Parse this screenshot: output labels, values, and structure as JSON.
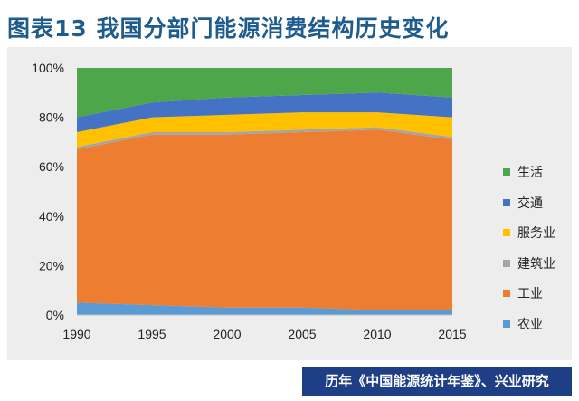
{
  "title": "图表13  我国分部门能源消费结构历史变化",
  "source": "历年《中国能源统计年鉴》、兴业研究",
  "chart_data": {
    "type": "area",
    "stacked": true,
    "percent": true,
    "x": [
      1990,
      1995,
      2000,
      2005,
      2010,
      2015
    ],
    "ylim": [
      0,
      100
    ],
    "yticks": [
      "0%",
      "20%",
      "40%",
      "60%",
      "80%",
      "100%"
    ],
    "legend_position": "right",
    "grid": false,
    "series": [
      {
        "name": "农业",
        "color": "#5b9bd5",
        "values": [
          5,
          4,
          3,
          3,
          2,
          2
        ]
      },
      {
        "name": "工业",
        "color": "#ed7d31",
        "values": [
          62,
          69,
          70,
          71,
          73,
          69
        ]
      },
      {
        "name": "建筑业",
        "color": "#a5a5a5",
        "values": [
          1,
          1,
          1,
          1,
          1,
          1
        ]
      },
      {
        "name": "服务业",
        "color": "#ffc000",
        "values": [
          6,
          6,
          7,
          7,
          6,
          8
        ]
      },
      {
        "name": "交通",
        "color": "#4472c4",
        "values": [
          6,
          6,
          7,
          7,
          8,
          8
        ]
      },
      {
        "name": "生活",
        "color": "#4ea64b",
        "values": [
          20,
          14,
          12,
          11,
          10,
          12
        ]
      }
    ]
  }
}
